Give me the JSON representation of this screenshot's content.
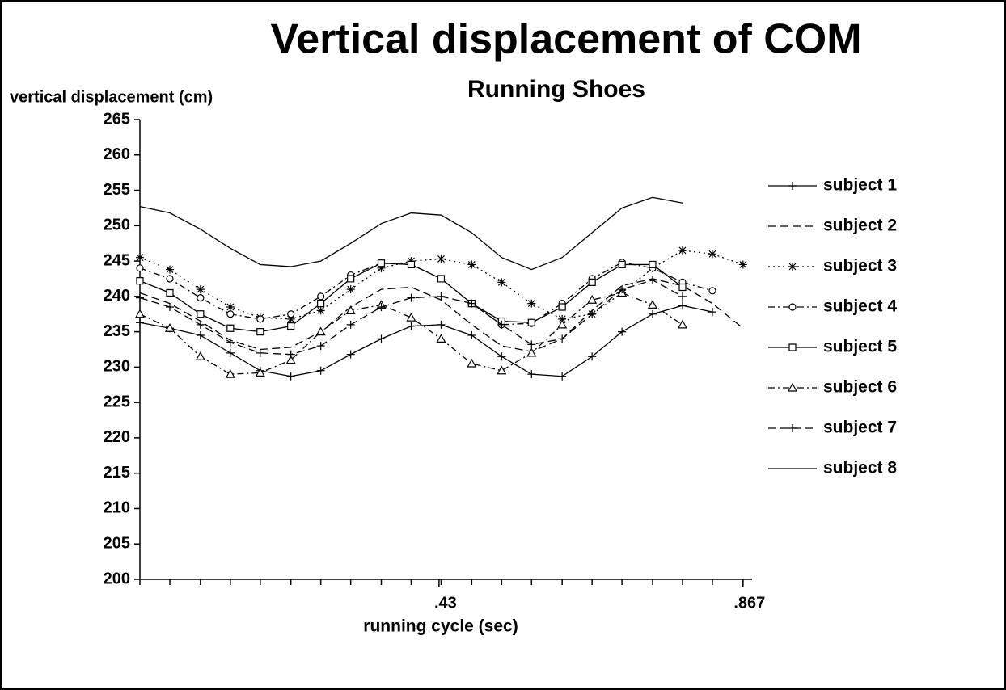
{
  "chart_data": {
    "type": "line",
    "title": "Vertical displacement of COM",
    "subtitle": "Running Shoes",
    "y_label": "vertical displacement (cm)",
    "x_label": "running cycle (sec)",
    "xlim": [
      0,
      0.88
    ],
    "ylim": [
      200,
      265
    ],
    "xticks": [
      {
        "value": 0.43,
        "label": ".43"
      },
      {
        "value": 0.867,
        "label": ".867"
      }
    ],
    "yticks": [
      200,
      205,
      210,
      215,
      220,
      225,
      230,
      235,
      240,
      245,
      250,
      255,
      260,
      265
    ],
    "legend": "right",
    "x": [
      0,
      0.043,
      0.087,
      0.13,
      0.173,
      0.217,
      0.26,
      0.303,
      0.347,
      0.39,
      0.433,
      0.477,
      0.52,
      0.563,
      0.607,
      0.65,
      0.693,
      0.737,
      0.78,
      0.823,
      0.867
    ],
    "series": [
      {
        "name": "subject 1",
        "color": "#000000",
        "marker": "plus",
        "dash": "solid",
        "values": [
          236.3,
          235.5,
          234.5,
          232,
          229.5,
          228.7,
          229.5,
          231.8,
          234,
          235.8,
          236,
          234.5,
          231.5,
          229,
          228.7,
          231.5,
          235,
          237.5,
          238.7,
          237.8,
          null
        ]
      },
      {
        "name": "subject 2",
        "color": "#000000",
        "marker": "none",
        "dash": "dashed",
        "values": [
          240.5,
          239,
          236.5,
          233.8,
          232.5,
          232.8,
          235,
          238.5,
          241,
          241.3,
          239.5,
          236,
          233,
          232.2,
          234,
          238,
          241.5,
          242.5,
          241.5,
          239,
          235.5
        ]
      },
      {
        "name": "subject 3",
        "color": "#000000",
        "marker": "star",
        "dash": "dotted",
        "values": [
          245.5,
          243.8,
          241,
          238.5,
          237,
          236.8,
          238,
          241,
          244,
          245,
          245.3,
          244.5,
          242,
          239,
          236.8,
          237.5,
          240.5,
          244,
          246.5,
          246,
          244.5
        ]
      },
      {
        "name": "subject 4",
        "color": "#000000",
        "marker": "circle",
        "dash": "dashdot",
        "values": [
          244,
          242.5,
          239.8,
          237.5,
          236.8,
          237.5,
          240,
          243,
          244.7,
          244.5,
          242.5,
          239,
          236,
          236.2,
          239,
          242.5,
          244.8,
          244,
          242,
          240.8,
          null
        ]
      },
      {
        "name": "subject 5",
        "color": "#000000",
        "marker": "square",
        "dash": "solid",
        "values": [
          242.2,
          240.5,
          237.5,
          235.5,
          235,
          235.8,
          239,
          242.5,
          244.7,
          244.5,
          242.5,
          239,
          236.5,
          236.3,
          238.5,
          242,
          244.5,
          244.5,
          241.3,
          null,
          null
        ]
      },
      {
        "name": "subject 6",
        "color": "#000000",
        "marker": "triangle",
        "dash": "dashdot",
        "values": [
          237.5,
          235.5,
          231.5,
          229,
          229.2,
          231,
          235,
          238,
          238.8,
          237,
          234,
          230.5,
          229.5,
          232,
          236,
          239.5,
          240.5,
          238.8,
          236,
          null,
          null
        ]
      },
      {
        "name": "subject 7",
        "color": "#000000",
        "marker": "plus",
        "dash": "dashed",
        "values": [
          239.8,
          238.5,
          236,
          233.5,
          232,
          231.8,
          233,
          236,
          238.5,
          239.8,
          240,
          239,
          236,
          233.2,
          234,
          237.5,
          241,
          242.3,
          240,
          null,
          null
        ]
      },
      {
        "name": "subject 8",
        "color": "#000000",
        "marker": "none",
        "dash": "solid",
        "values": [
          252.7,
          251.8,
          249.5,
          246.8,
          244.5,
          244.2,
          245,
          247.5,
          250.3,
          251.8,
          251.5,
          249,
          245.5,
          243.8,
          245.5,
          249,
          252.5,
          254,
          253.2,
          null,
          null
        ]
      }
    ]
  }
}
